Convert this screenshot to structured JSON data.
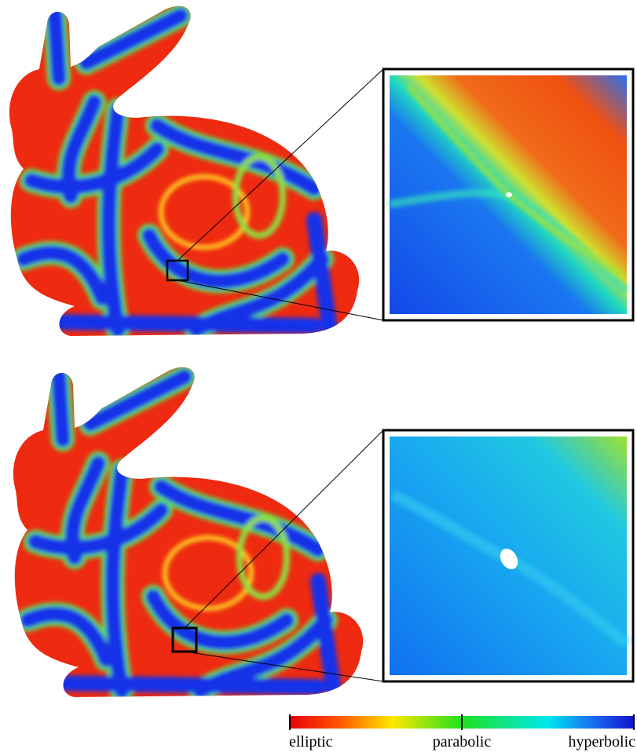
{
  "colorbar": {
    "labels": [
      "elliptic",
      "parabolic",
      "hyperbolic"
    ]
  }
}
